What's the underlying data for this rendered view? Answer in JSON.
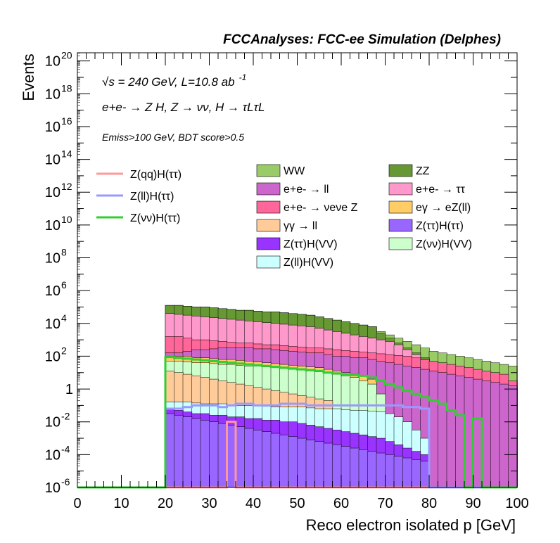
{
  "header": {
    "title": "FCCAnalyses: FCC-ee Simulation (Delphes)"
  },
  "annotations": {
    "line1": "√s = 240 GeV, L=10.8 ab",
    "line1_sup": "-1",
    "line2": "e+e- → Z H, Z → νν, H → τLτL",
    "line3": "Emiss>100 GeV, BDT score>0.5"
  },
  "chart_data": {
    "type": "histogram",
    "title": "FCCAnalyses: FCC-ee Simulation (Delphes)",
    "xlabel": "Reco electron isolated p [GeV]",
    "ylabel": "Events",
    "xlim": [
      0,
      100
    ],
    "ylim_log10": [
      -6,
      20.5
    ],
    "log_y": true,
    "xticks": [
      "0",
      "10",
      "20",
      "30",
      "40",
      "50",
      "60",
      "70",
      "80",
      "90",
      "100"
    ],
    "yticks": [
      {
        "exp": -6,
        "label": "10",
        "sup": "-6"
      },
      {
        "exp": -4,
        "label": "10",
        "sup": "-4"
      },
      {
        "exp": -2,
        "label": "10",
        "sup": "-2"
      },
      {
        "exp": 0,
        "label": "1",
        "sup": ""
      },
      {
        "exp": 2,
        "label": "10",
        "sup": "2"
      },
      {
        "exp": 4,
        "label": "10",
        "sup": "4"
      },
      {
        "exp": 6,
        "label": "10",
        "sup": "6"
      },
      {
        "exp": 8,
        "label": "10",
        "sup": "8"
      },
      {
        "exp": 10,
        "label": "10",
        "sup": "10"
      },
      {
        "exp": 12,
        "label": "10",
        "sup": "12"
      },
      {
        "exp": 14,
        "label": "10",
        "sup": "14"
      },
      {
        "exp": 16,
        "label": "10",
        "sup": "16"
      },
      {
        "exp": 18,
        "label": "10",
        "sup": "18"
      },
      {
        "exp": 20,
        "label": "10",
        "sup": "20"
      }
    ],
    "bin_edges_start": 20,
    "bin_width": 2,
    "stack_log10_upper_edges": [
      {
        "name": "WW",
        "color": "#99cc66",
        "values": [
          5.1,
          5.1,
          5.05,
          5.0,
          5.0,
          4.95,
          4.9,
          4.85,
          4.8,
          4.8,
          4.75,
          4.7,
          4.7,
          4.65,
          4.6,
          4.55,
          4.5,
          4.4,
          4.3,
          4.2,
          4.1,
          4.0,
          3.9,
          3.8,
          3.5,
          3.3,
          3.1,
          2.9,
          2.7,
          2.5,
          2.3,
          2.2,
          2.1,
          2.0,
          1.9,
          1.8,
          1.7,
          1.6,
          1.5,
          1.4
        ]
      },
      {
        "name": "ZZ",
        "color": "#669933",
        "values": [
          5.1,
          5.1,
          5.05,
          5.0,
          5.0,
          4.95,
          4.9,
          4.85,
          4.8,
          4.8,
          4.75,
          4.7,
          4.7,
          4.65,
          4.6,
          4.55,
          4.5,
          4.4,
          4.3,
          4.2,
          4.1,
          4.0,
          3.9,
          3.8,
          3.4,
          3.1,
          2.8,
          2.5,
          2.2,
          1.9,
          1.6,
          1.3,
          1.1,
          1.0,
          0.8,
          0.6,
          0.4,
          0.3,
          0.2,
          0.1
        ]
      },
      {
        "name": "e+e- → τ τ",
        "color": "#ff99cc",
        "values": [
          4.6,
          4.55,
          4.5,
          4.45,
          4.4,
          4.35,
          4.3,
          4.25,
          4.2,
          4.15,
          4.1,
          4.05,
          4.0,
          3.95,
          3.9,
          3.85,
          3.8,
          3.7,
          3.6,
          3.5,
          3.4,
          3.3,
          3.2,
          3.1,
          3.0,
          2.9,
          2.7,
          2.4,
          2.1,
          1.8,
          1.5,
          1.2,
          0.9,
          0.6,
          -6,
          -6,
          -6,
          -6,
          -6,
          -6
        ]
      },
      {
        "name": "e+e- → νeνe Z",
        "color": "#ff6699",
        "values": [
          3.2,
          3.2,
          3.1,
          3.0,
          3.0,
          2.95,
          2.9,
          2.85,
          2.8,
          2.8,
          2.75,
          2.7,
          2.7,
          2.65,
          2.6,
          2.55,
          2.5,
          2.5,
          2.45,
          2.4,
          2.35,
          2.3,
          2.25,
          2.2,
          2.15,
          2.1,
          2.05,
          2.0,
          1.9,
          1.8,
          1.7,
          1.6,
          1.5,
          1.4,
          1.3,
          1.2,
          1.1,
          1.0,
          0.9,
          0.5
        ]
      },
      {
        "name": "e+e- → ll",
        "color": "#cc66cc",
        "values": [
          2.2,
          2.2,
          2.3,
          2.4,
          2.4,
          2.45,
          2.5,
          2.5,
          2.5,
          2.5,
          2.45,
          2.45,
          2.4,
          2.35,
          2.3,
          2.25,
          2.2,
          2.2,
          2.1,
          2.0,
          2.0,
          1.9,
          1.9,
          1.8,
          1.7,
          1.6,
          1.5,
          1.4,
          1.3,
          1.2,
          1.1,
          1.0,
          0.9,
          0.8,
          0.7,
          0.6,
          0.5,
          0.4,
          0.3,
          0.2
        ]
      },
      {
        "name": "eγ → eZ(ll)",
        "color": "#ffcc66",
        "values": [
          2.0,
          2.0,
          2.0,
          1.9,
          1.9,
          1.85,
          1.8,
          1.8,
          1.75,
          1.7,
          1.65,
          1.6,
          1.55,
          1.5,
          1.45,
          1.4,
          1.35,
          1.3,
          1.2,
          1.1,
          1.0,
          0.9,
          0.8,
          0.6,
          -6,
          -6,
          -6,
          -6,
          -6,
          -6,
          -6,
          -6,
          -6,
          -6,
          -6,
          -6,
          -6,
          -6,
          -6,
          -6
        ]
      },
      {
        "name": "Z(νν)H(VV)",
        "color": "#ccffcc",
        "values": [
          1.7,
          1.7,
          1.65,
          1.6,
          1.6,
          1.55,
          1.5,
          1.5,
          1.45,
          1.4,
          1.4,
          1.35,
          1.3,
          1.25,
          1.2,
          1.15,
          1.1,
          1.05,
          1.0,
          0.9,
          0.8,
          0.7,
          0.5,
          0.3,
          -0.3,
          -6,
          -6,
          -6,
          -6,
          -6,
          -6,
          -6,
          -6,
          -6,
          -6,
          -6,
          -6,
          -6,
          -6,
          -6
        ]
      },
      {
        "name": "γγ → ll",
        "color": "#ffcc99",
        "values": [
          1.1,
          1.0,
          0.9,
          0.8,
          0.7,
          0.6,
          0.5,
          0.4,
          0.3,
          0.2,
          0.1,
          0.0,
          -0.1,
          -0.2,
          -0.3,
          -0.4,
          -0.5,
          -0.6,
          -0.7,
          -6,
          -6,
          -6,
          -6,
          -6,
          -6,
          -6,
          -6,
          -6,
          -6,
          -6,
          -6,
          -6,
          -6,
          -6,
          -6,
          -6,
          -6,
          -6,
          -6,
          -6
        ]
      },
      {
        "name": "Z(ll)H(VV)",
        "color": "#ccffff",
        "values": [
          -0.8,
          -0.8,
          -0.8,
          -0.85,
          -0.9,
          -0.9,
          -0.9,
          -0.95,
          -1.0,
          -1.0,
          -1.0,
          -1.05,
          -1.1,
          -1.1,
          -1.1,
          -1.1,
          -1.15,
          -1.2,
          -1.2,
          -1.2,
          -1.25,
          -1.3,
          -1.3,
          -1.35,
          -1.4,
          -1.5,
          -1.7,
          -2.0,
          -2.5,
          -3.0,
          -6,
          -6,
          -6,
          -6,
          -6,
          -6,
          -6,
          -6,
          -6,
          -6
        ]
      },
      {
        "name": "Z(ττ)H(VV)",
        "color": "#9933ff",
        "values": [
          -1.2,
          -1.3,
          -1.4,
          -1.5,
          -1.5,
          -1.6,
          -1.6,
          -1.7,
          -1.7,
          -1.8,
          -1.8,
          -1.9,
          -1.9,
          -2.0,
          -2.0,
          -2.1,
          -2.2,
          -2.3,
          -2.4,
          -2.5,
          -2.6,
          -2.7,
          -2.8,
          -2.9,
          -3.0,
          -3.2,
          -3.4,
          -3.6,
          -3.8,
          -4.0,
          -6,
          -6,
          -6,
          -6,
          -6,
          -6,
          -6,
          -6,
          -6,
          -6
        ]
      },
      {
        "name": "Z(ττ)H(ττ)",
        "color": "#9966ff",
        "values": [
          -1.5,
          -1.6,
          -1.7,
          -1.8,
          -1.9,
          -2.0,
          -2.1,
          -2.2,
          -2.3,
          -2.4,
          -2.5,
          -2.6,
          -2.7,
          -2.8,
          -2.9,
          -3.0,
          -3.1,
          -3.2,
          -3.3,
          -3.4,
          -3.5,
          -3.6,
          -3.7,
          -3.8,
          -3.9,
          -4.0,
          -4.1,
          -4.2,
          -4.3,
          -4.4,
          -6,
          -6,
          -6,
          -6,
          -6,
          -6,
          -6,
          -6,
          -6,
          -6
        ]
      }
    ],
    "signal_lines_log10": [
      {
        "name": "Z(qq)H(ττ)",
        "color": "#ff9999",
        "values": [
          -6,
          -6,
          -6,
          -6,
          -6,
          -6,
          -6,
          -2.0,
          -6,
          -6,
          -6,
          -6,
          -6,
          -6,
          -6,
          -6,
          -6,
          -6,
          -6,
          -6,
          -6,
          -6,
          -6,
          -6,
          -6,
          -6,
          -6,
          -6,
          -6,
          -6,
          -6,
          -6,
          -6,
          -6,
          -6,
          -6,
          -6,
          -6,
          -6,
          -6
        ]
      },
      {
        "name": "Z(ll)H(ττ)",
        "color": "#9999ff",
        "values": [
          -1.2,
          -1.2,
          -1.1,
          -1.0,
          -1.0,
          -1.0,
          -1.1,
          -1.0,
          -0.9,
          -0.9,
          -1.0,
          -1.0,
          -1.0,
          -0.9,
          -0.9,
          -0.9,
          -1.0,
          -1.0,
          -1.0,
          -1.0,
          -1.0,
          -1.0,
          -1.0,
          -1.0,
          -1.0,
          -1.0,
          -1.0,
          -1.1,
          -1.1,
          -1.2,
          -6,
          -6,
          -6,
          -6,
          -6,
          -6,
          -6,
          -6,
          -6,
          -6
        ]
      },
      {
        "name": "Z(νν)H(ττ)",
        "color": "#33cc33",
        "values": [
          1.95,
          1.9,
          1.85,
          1.8,
          1.75,
          1.7,
          1.65,
          1.6,
          1.55,
          1.5,
          1.45,
          1.4,
          1.35,
          1.3,
          1.25,
          1.2,
          1.15,
          1.1,
          1.0,
          0.95,
          0.9,
          0.85,
          0.8,
          0.7,
          0.5,
          0.3,
          0.1,
          -0.1,
          -0.3,
          -0.5,
          -0.7,
          -0.9,
          -1.3,
          -1.6,
          -6,
          -1.8,
          -6,
          -6,
          -6,
          -6
        ]
      }
    ],
    "legend": {
      "left": [
        {
          "label": "Z(qq)H(ττ)",
          "color": "#ff9999",
          "style": "line"
        },
        {
          "label": "Z(ll)H(ττ)",
          "color": "#9999ff",
          "style": "line"
        },
        {
          "label": "Z(νν)H(ττ)",
          "color": "#33cc33",
          "style": "line"
        }
      ],
      "right": [
        {
          "label": "WW",
          "color": "#99cc66"
        },
        {
          "label": "ZZ",
          "color": "#669933"
        },
        {
          "label": "e+e- → ll",
          "color": "#cc66cc"
        },
        {
          "label": "e+e- → ττ",
          "color": "#ff99cc"
        },
        {
          "label": "e+e- → νeνe Z",
          "color": "#ff6699"
        },
        {
          "label": "eγ → eZ(ll)",
          "color": "#ffcc66"
        },
        {
          "label": "γγ → ll",
          "color": "#ffcc99"
        },
        {
          "label": "Z(ττ)H(ττ)",
          "color": "#9966ff"
        },
        {
          "label": "Z(ττ)H(VV)",
          "color": "#9933ff"
        },
        {
          "label": "Z(νν)H(VV)",
          "color": "#ccffcc"
        },
        {
          "label": "Z(ll)H(VV)",
          "color": "#ccffff"
        }
      ]
    }
  }
}
